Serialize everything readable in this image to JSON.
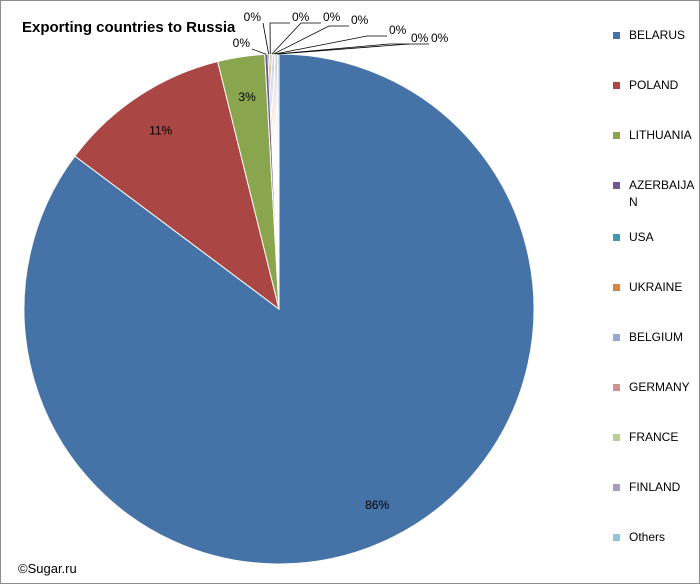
{
  "title": "Exporting countries to Russia",
  "credit": "©Sugar.ru",
  "chart_data": {
    "type": "pie",
    "title": "Exporting countries to Russia",
    "legend_position": "right",
    "categories": [
      "BELARUS",
      "POLAND",
      "LITHUANIA",
      "AZERBAIJAN",
      "USA",
      "UKRAINE",
      "BELGIUM",
      "GERMANY",
      "FRANCE",
      "FINLAND",
      "Others"
    ],
    "values": [
      86,
      11,
      3,
      0.2,
      0.1,
      0.1,
      0.1,
      0.1,
      0.1,
      0.1,
      0.1
    ],
    "data_labels": [
      "86%",
      "11%",
      "3%",
      "0%",
      "0%",
      "0%",
      "0%",
      "0%",
      "0%",
      "0%",
      "0%"
    ],
    "colors": [
      "#4572a7",
      "#aa4643",
      "#89a54e",
      "#71588f",
      "#4198af",
      "#db843d",
      "#93a9cf",
      "#d19392",
      "#b9cd96",
      "#a99bbd",
      "#92c4d6"
    ]
  },
  "legend": {
    "items": [
      {
        "label": "BELARUS"
      },
      {
        "label": "POLAND"
      },
      {
        "label": "LITHUANIA"
      },
      {
        "label": "AZERBAIJAN"
      },
      {
        "label": "USA"
      },
      {
        "label": "UKRAINE"
      },
      {
        "label": "BELGIUM"
      },
      {
        "label": "GERMANY"
      },
      {
        "label": "FRANCE"
      },
      {
        "label": "FINLAND"
      },
      {
        "label": "Others"
      }
    ]
  }
}
